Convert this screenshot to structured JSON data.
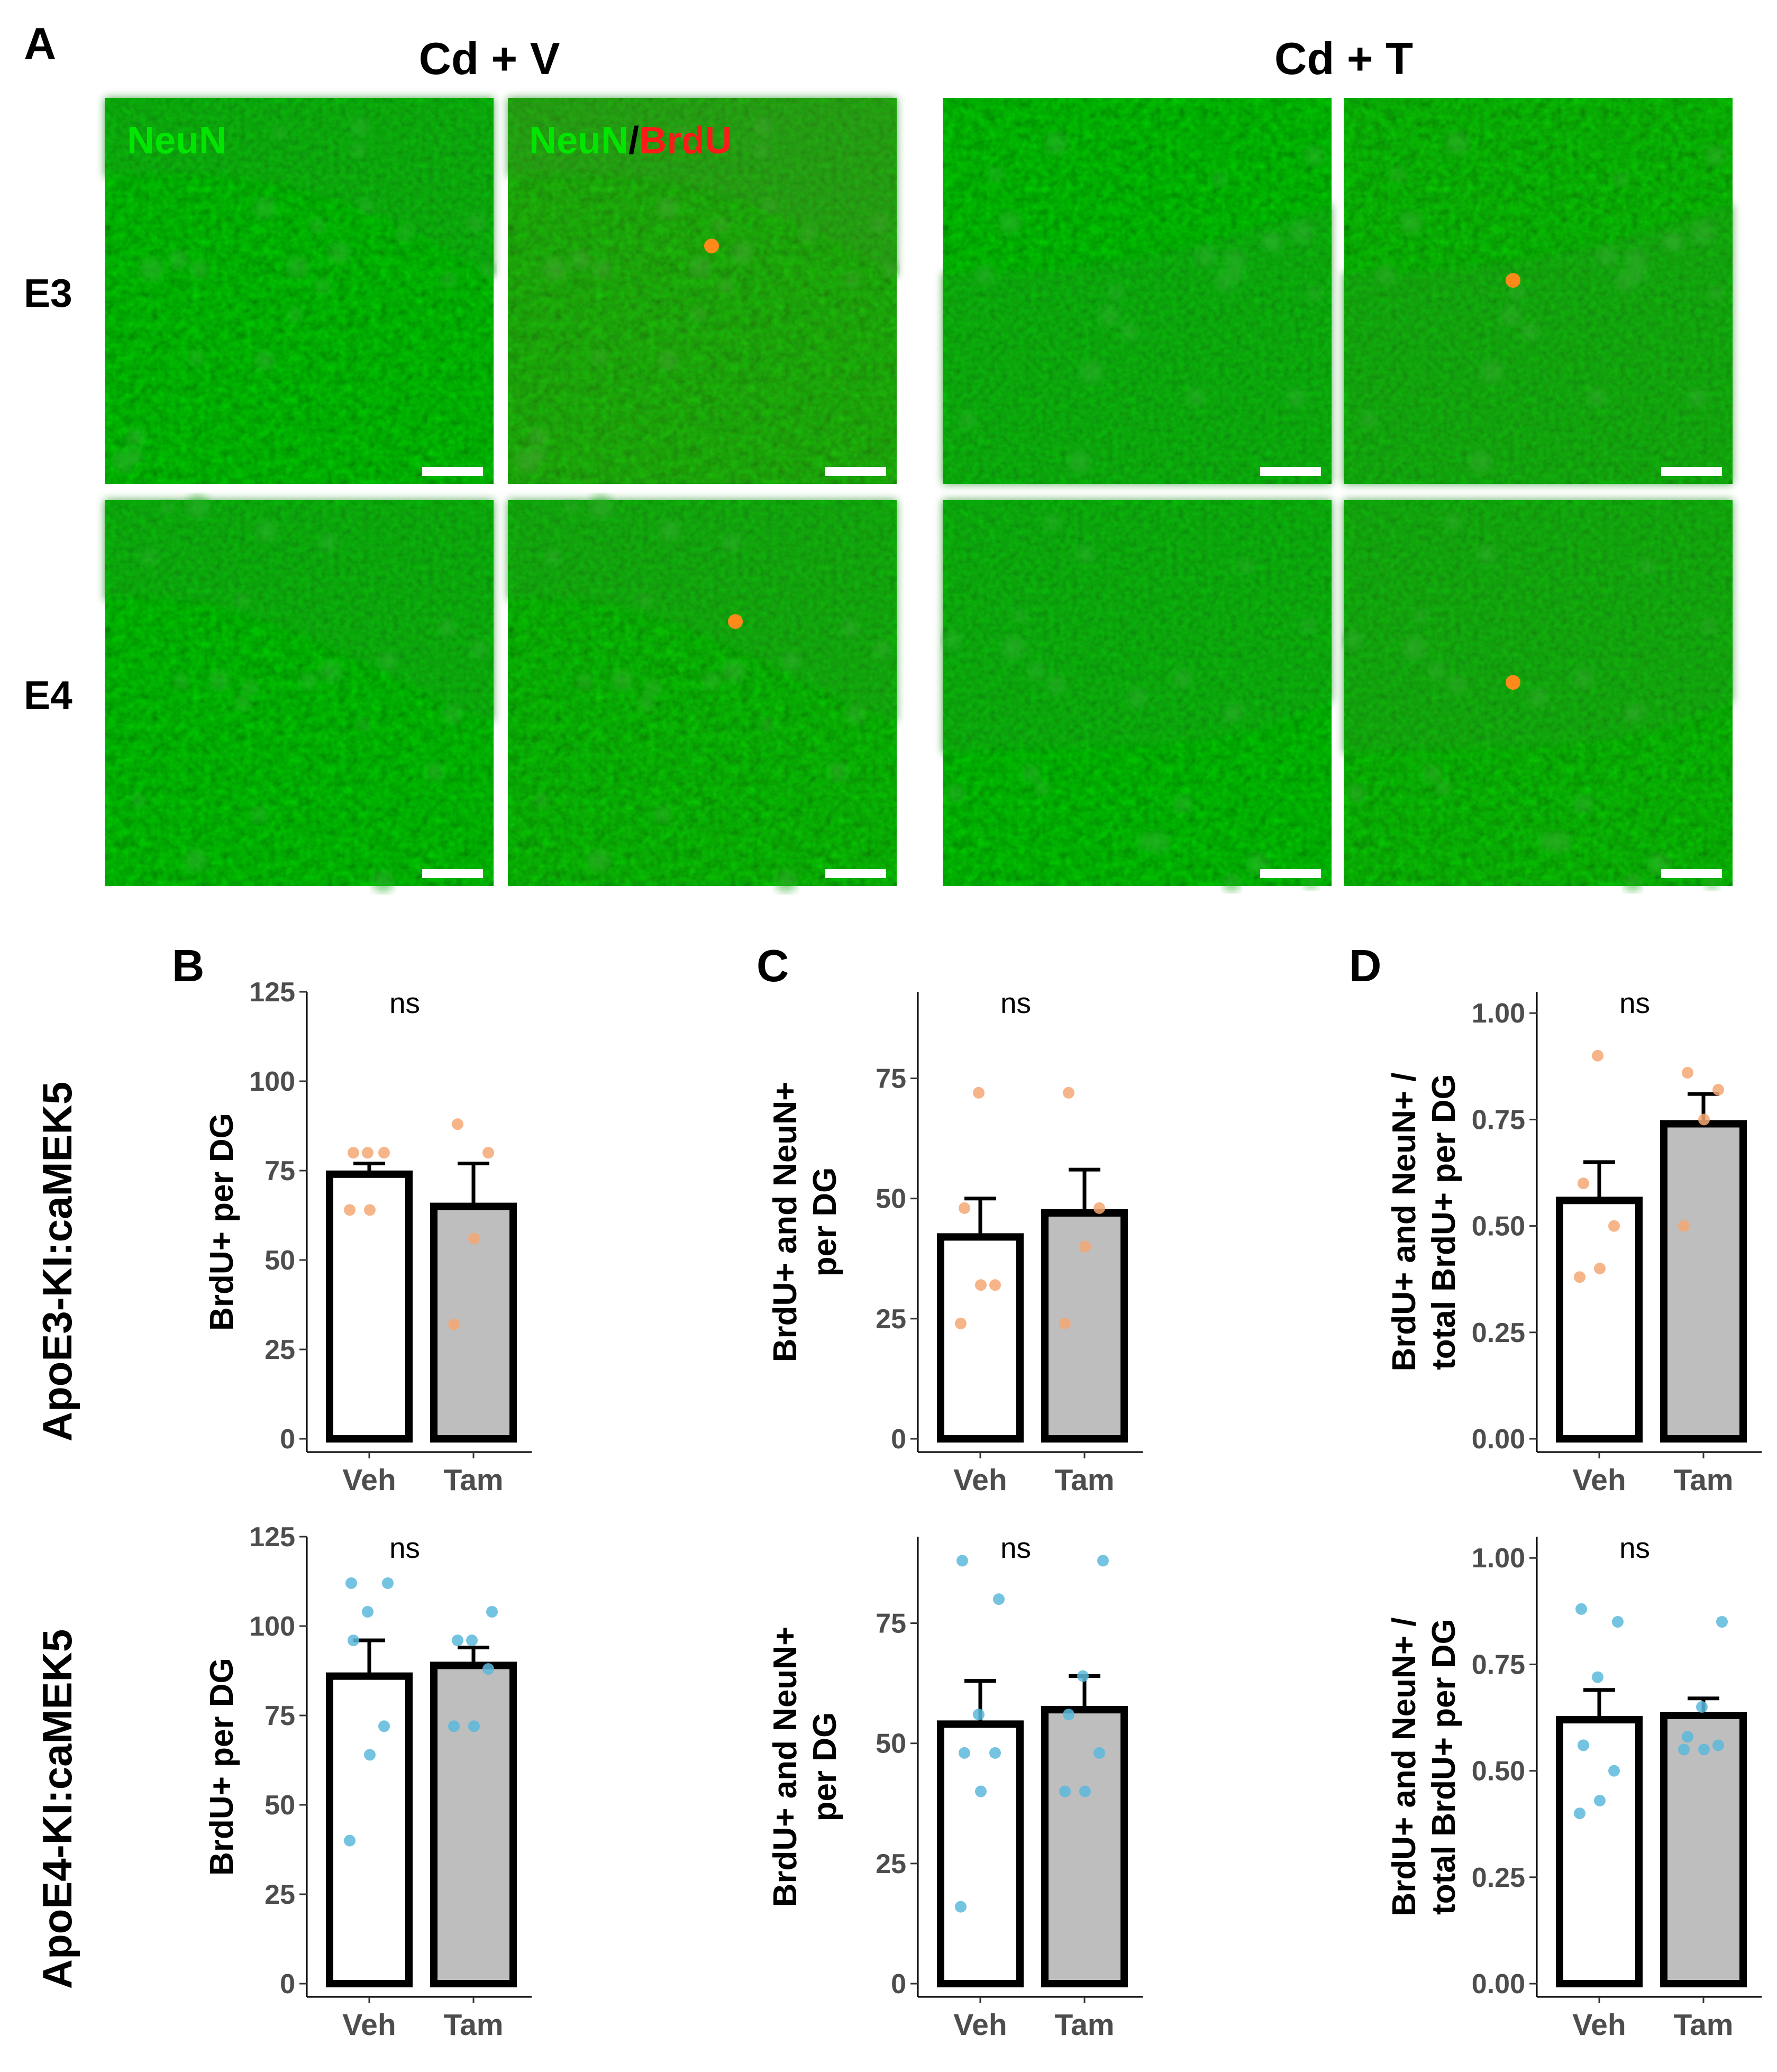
{
  "figure": {
    "panels": {
      "A": "A",
      "B": "B",
      "C": "C",
      "D": "D"
    },
    "micrographs": {
      "col_titles": [
        "Cd + V",
        "Cd + T"
      ],
      "row_labels": [
        "E3",
        "E4"
      ],
      "channel_neun": "NeuN",
      "channel_sep": "/",
      "channel_brdu": "BrdU",
      "colors": {
        "neun": "#00e600",
        "brdu": "#ff1a1a",
        "tissue": "#0a3d0a",
        "scale_bar": "#ffffff"
      }
    },
    "genotypes": [
      "ApoE3-KI:caMEK5",
      "ApoE4-KI:caMEK5"
    ]
  },
  "chart_data": [
    {
      "type": "bar",
      "panel": "B",
      "genotype": "ApoE3-KI:caMEK5",
      "categories": [
        "Veh",
        "Tam"
      ],
      "values": [
        74,
        65
      ],
      "error": [
        3,
        12
      ],
      "points": [
        [
          64,
          64,
          80,
          80,
          80
        ],
        [
          32,
          56,
          80,
          88
        ]
      ],
      "ylabel": [
        "BrdU+ per DG"
      ],
      "ylim": [
        0,
        125
      ],
      "yticks": [
        0,
        25,
        50,
        75,
        100,
        125
      ],
      "tick_labels": [
        "0",
        "25",
        "50",
        "75",
        "100",
        "125"
      ],
      "significance": "ns",
      "point_color": "#f4a774",
      "bar_colors": [
        "#ffffff",
        "#bebebe"
      ]
    },
    {
      "type": "bar",
      "panel": "C",
      "genotype": "ApoE3-KI:caMEK5",
      "categories": [
        "Veh",
        "Tam"
      ],
      "values": [
        42,
        47
      ],
      "error": [
        8,
        9
      ],
      "points": [
        [
          24,
          32,
          32,
          48,
          72
        ],
        [
          24,
          40,
          48,
          72
        ]
      ],
      "ylabel": [
        "BrdU+ and NeuN+",
        "per DG"
      ],
      "ylim": [
        0,
        93
      ],
      "yticks": [
        0,
        25,
        50,
        75
      ],
      "tick_labels": [
        "0",
        "25",
        "50",
        "75"
      ],
      "significance": "ns",
      "point_color": "#f4a774",
      "bar_colors": [
        "#ffffff",
        "#bebebe"
      ]
    },
    {
      "type": "bar",
      "panel": "D",
      "genotype": "ApoE3-KI:caMEK5",
      "categories": [
        "Veh",
        "Tam"
      ],
      "values": [
        0.56,
        0.74
      ],
      "error": [
        0.09,
        0.07
      ],
      "points": [
        [
          0.38,
          0.4,
          0.5,
          0.6,
          0.9
        ],
        [
          0.5,
          0.75,
          0.82,
          0.86
        ]
      ],
      "ylabel": [
        "BrdU+ and NeuN+ /",
        "total BrdU+ per DG"
      ],
      "ylim": [
        0,
        1.05
      ],
      "yticks": [
        0,
        0.25,
        0.5,
        0.75,
        1.0
      ],
      "tick_labels": [
        "0.00",
        "0.25",
        "0.50",
        "0.75",
        "1.00"
      ],
      "significance": "ns",
      "point_color": "#f4a774",
      "bar_colors": [
        "#ffffff",
        "#bebebe"
      ]
    },
    {
      "type": "bar",
      "panel": "B",
      "genotype": "ApoE4-KI:caMEK5",
      "categories": [
        "Veh",
        "Tam"
      ],
      "values": [
        86,
        89
      ],
      "error": [
        10,
        5
      ],
      "points": [
        [
          40,
          64,
          72,
          96,
          104,
          112,
          112
        ],
        [
          72,
          72,
          88,
          96,
          96,
          104
        ]
      ],
      "ylabel": [
        "BrdU+ per DG"
      ],
      "ylim": [
        0,
        125
      ],
      "yticks": [
        0,
        25,
        50,
        75,
        100,
        125
      ],
      "tick_labels": [
        "0",
        "25",
        "50",
        "75",
        "100",
        "125"
      ],
      "significance": "ns",
      "point_color": "#5bb8dc",
      "bar_colors": [
        "#ffffff",
        "#bebebe"
      ]
    },
    {
      "type": "bar",
      "panel": "C",
      "genotype": "ApoE4-KI:caMEK5",
      "categories": [
        "Veh",
        "Tam"
      ],
      "values": [
        54,
        57
      ],
      "error": [
        9,
        7
      ],
      "points": [
        [
          16,
          40,
          48,
          48,
          56,
          80,
          88
        ],
        [
          40,
          40,
          48,
          56,
          64,
          88
        ]
      ],
      "ylabel": [
        "BrdU+ and NeuN+",
        "per DG"
      ],
      "ylim": [
        0,
        93
      ],
      "yticks": [
        0,
        25,
        50,
        75
      ],
      "tick_labels": [
        "0",
        "25",
        "50",
        "75"
      ],
      "significance": "ns",
      "point_color": "#5bb8dc",
      "bar_colors": [
        "#ffffff",
        "#bebebe"
      ]
    },
    {
      "type": "bar",
      "panel": "D",
      "genotype": "ApoE4-KI:caMEK5",
      "categories": [
        "Veh",
        "Tam"
      ],
      "values": [
        0.62,
        0.63
      ],
      "error": [
        0.07,
        0.04
      ],
      "points": [
        [
          0.4,
          0.43,
          0.5,
          0.56,
          0.72,
          0.85,
          0.88
        ],
        [
          0.55,
          0.55,
          0.56,
          0.58,
          0.65,
          0.85
        ]
      ],
      "ylabel": [
        "BrdU+ and NeuN+ /",
        "total BrdU+ per DG"
      ],
      "ylim": [
        0,
        1.05
      ],
      "yticks": [
        0,
        0.25,
        0.5,
        0.75,
        1.0
      ],
      "tick_labels": [
        "0.00",
        "0.25",
        "0.50",
        "0.75",
        "1.00"
      ],
      "significance": "ns",
      "point_color": "#5bb8dc",
      "bar_colors": [
        "#ffffff",
        "#bebebe"
      ]
    }
  ]
}
